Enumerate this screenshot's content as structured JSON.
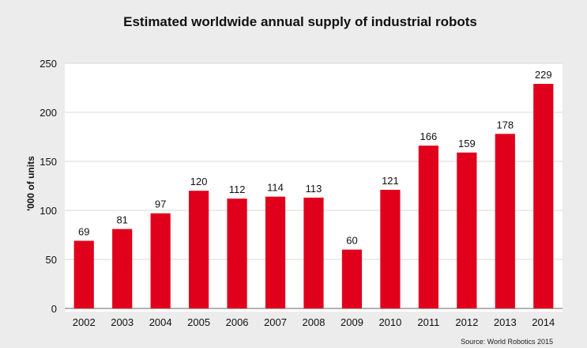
{
  "chart_data": {
    "type": "bar",
    "title": "Estimated worldwide annual supply of industrial robots",
    "xlabel": "",
    "ylabel": "'000 of units",
    "categories": [
      "2002",
      "2003",
      "2004",
      "2005",
      "2006",
      "2007",
      "2008",
      "2009",
      "2010",
      "2011",
      "2012",
      "2013",
      "2014"
    ],
    "values": [
      69,
      81,
      97,
      120,
      112,
      114,
      113,
      60,
      121,
      166,
      159,
      178,
      229
    ],
    "ylim": [
      0,
      250
    ],
    "yticks": [
      0,
      50,
      100,
      150,
      200,
      250
    ],
    "grid": true,
    "data_labels": true,
    "bar_color": "#e0001b",
    "source": "Source: World Robotics 2015"
  }
}
